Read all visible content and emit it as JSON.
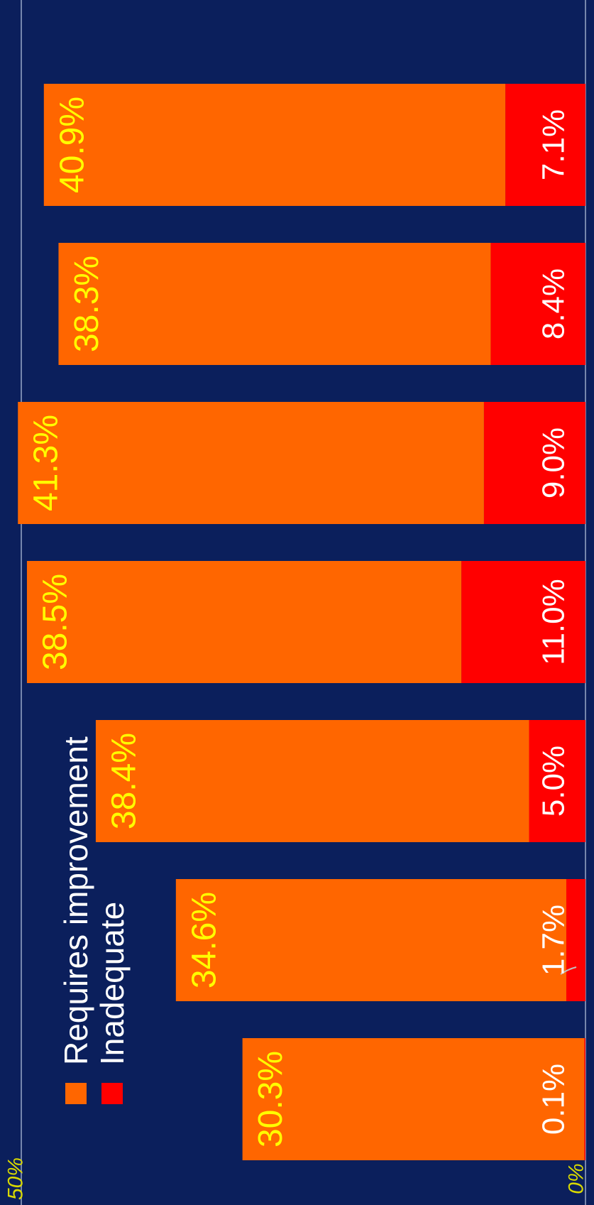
{
  "chart_data": {
    "type": "bar",
    "stacked": true,
    "orientation": "horizontal",
    "rotated": "90deg",
    "title": "",
    "xlabel": "",
    "ylabel": "",
    "ylim": [
      0,
      50
    ],
    "ticks": [
      "0%",
      "50%"
    ],
    "grid": true,
    "legend": "top-left",
    "categories": [
      "",
      "",
      "",
      "",
      "",
      "",
      ""
    ],
    "series": [
      {
        "name": "Inadequate",
        "color": "#ff0000",
        "values": [
          0.1,
          1.7,
          5.0,
          11.0,
          9.0,
          8.4,
          7.1
        ],
        "labels": [
          "0.1%",
          "1.7%",
          "5.0%",
          "11.0%",
          "9.0%",
          "8.4%",
          "7.1%"
        ]
      },
      {
        "name": "Requires improvement",
        "color": "#ff6600",
        "values": [
          30.3,
          34.6,
          38.4,
          38.5,
          41.3,
          38.3,
          40.9
        ],
        "labels": [
          "30.3%",
          "34.6%",
          "38.4%",
          "38.5%",
          "41.3%",
          "38.3%",
          "40.9%"
        ]
      }
    ],
    "colors": {
      "background": "#0b1f5c",
      "inadequate_label": "#ffffff",
      "requires_label": "#ffff00",
      "tick_label": "#d9d900",
      "grid": "#9aa8c8"
    }
  }
}
